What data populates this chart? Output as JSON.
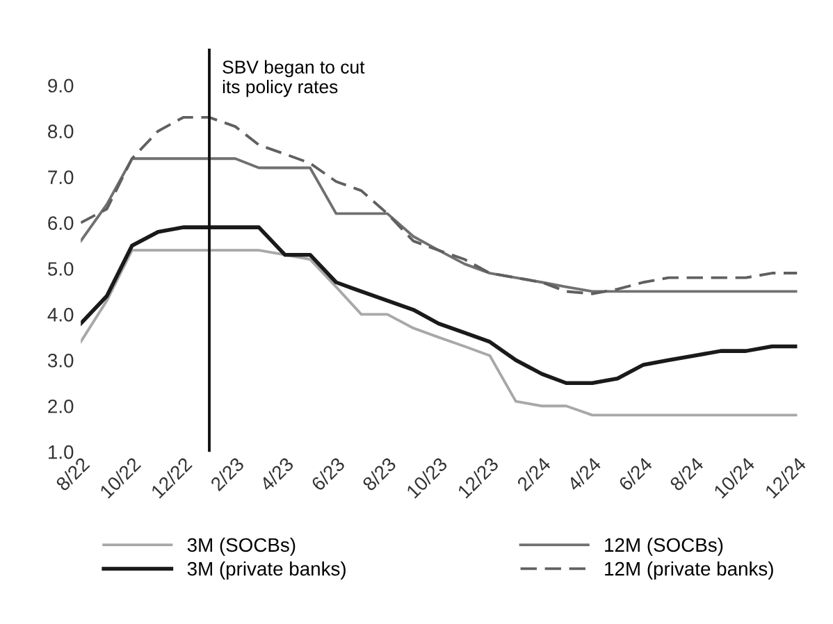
{
  "chart_data": {
    "type": "line",
    "x": [
      "2022-08",
      "2022-09",
      "2022-10",
      "2022-11",
      "2022-12",
      "2023-01",
      "2023-02",
      "2023-03",
      "2023-04",
      "2023-05",
      "2023-06",
      "2023-07",
      "2023-08",
      "2023-09",
      "2023-10",
      "2023-11",
      "2023-12",
      "2024-01",
      "2024-02",
      "2024-03",
      "2024-04",
      "2024-05",
      "2024-06",
      "2024-07",
      "2024-08",
      "2024-09",
      "2024-10",
      "2024-11",
      "2024-12"
    ],
    "series": [
      {
        "name": "3M (SOCBs)",
        "color": "#a8a8a8",
        "line_style": "solid",
        "values": [
          3.4,
          4.3,
          5.4,
          5.4,
          5.4,
          5.4,
          5.4,
          5.4,
          5.3,
          5.2,
          4.6,
          4.0,
          4.0,
          3.7,
          3.5,
          3.3,
          3.1,
          2.1,
          2.0,
          2.0,
          1.8,
          1.8,
          1.8,
          1.8,
          1.8,
          1.8,
          1.8,
          1.8,
          1.8
        ]
      },
      {
        "name": "3M (private banks)",
        "color": "#1a1a1a",
        "line_style": "solid",
        "values": [
          3.8,
          4.4,
          5.5,
          5.8,
          5.9,
          5.9,
          5.9,
          5.9,
          5.3,
          5.3,
          4.7,
          4.5,
          4.3,
          4.1,
          3.8,
          3.6,
          3.4,
          3.0,
          2.7,
          2.5,
          2.5,
          2.6,
          2.9,
          3.0,
          3.1,
          3.2,
          3.2,
          3.3,
          3.3
        ]
      },
      {
        "name": "12M (SOCBs)",
        "color": "#707070",
        "line_style": "solid",
        "values": [
          5.6,
          6.4,
          7.4,
          7.4,
          7.4,
          7.4,
          7.4,
          7.2,
          7.2,
          7.2,
          6.2,
          6.2,
          6.2,
          5.7,
          5.4,
          5.1,
          4.9,
          4.8,
          4.7,
          4.6,
          4.5,
          4.5,
          4.5,
          4.5,
          4.5,
          4.5,
          4.5,
          4.5,
          4.5
        ]
      },
      {
        "name": "12M (private banks)",
        "color": "#606060",
        "line_style": "dashed",
        "values": [
          6.0,
          6.3,
          7.4,
          8.0,
          8.3,
          8.3,
          8.1,
          7.7,
          7.5,
          7.3,
          6.9,
          6.7,
          6.2,
          5.6,
          5.4,
          5.2,
          4.9,
          4.8,
          4.7,
          4.5,
          4.45,
          4.55,
          4.7,
          4.8,
          4.8,
          4.8,
          4.8,
          4.9,
          4.9
        ]
      }
    ],
    "xlim": [
      "2022-08",
      "2024-12"
    ],
    "xticks": [
      {
        "value": "2022-08",
        "label": "8/22"
      },
      {
        "value": "2022-10",
        "label": "10/22"
      },
      {
        "value": "2022-12",
        "label": "12/22"
      },
      {
        "value": "2023-02",
        "label": "2/23"
      },
      {
        "value": "2023-04",
        "label": "4/23"
      },
      {
        "value": "2023-06",
        "label": "6/23"
      },
      {
        "value": "2023-08",
        "label": "8/23"
      },
      {
        "value": "2023-10",
        "label": "10/23"
      },
      {
        "value": "2023-12",
        "label": "12/23"
      },
      {
        "value": "2024-02",
        "label": "2/24"
      },
      {
        "value": "2024-04",
        "label": "4/24"
      },
      {
        "value": "2024-06",
        "label": "6/24"
      },
      {
        "value": "2024-08",
        "label": "8/24"
      },
      {
        "value": "2024-10",
        "label": "10/24"
      },
      {
        "value": "2024-12",
        "label": "12/24"
      }
    ],
    "ylim": [
      1.0,
      9.8
    ],
    "yticks": [
      {
        "value": 1,
        "label": "1.0"
      },
      {
        "value": 2,
        "label": "2.0"
      },
      {
        "value": 3,
        "label": "3.0"
      },
      {
        "value": 4,
        "label": "4.0"
      },
      {
        "value": 5,
        "label": "5.0"
      },
      {
        "value": 6,
        "label": "6.0"
      },
      {
        "value": 7,
        "label": "7.0"
      },
      {
        "value": 8,
        "label": "8.0"
      },
      {
        "value": 9,
        "label": "9.0"
      }
    ],
    "ref_lines": [
      {
        "axis": "x",
        "value": "2023-01",
        "label": "SBV began to cut\nits policy rates",
        "color": "#111111",
        "line_style": "solid"
      }
    ],
    "grid": false,
    "legend": "bottom",
    "marker": "none"
  }
}
